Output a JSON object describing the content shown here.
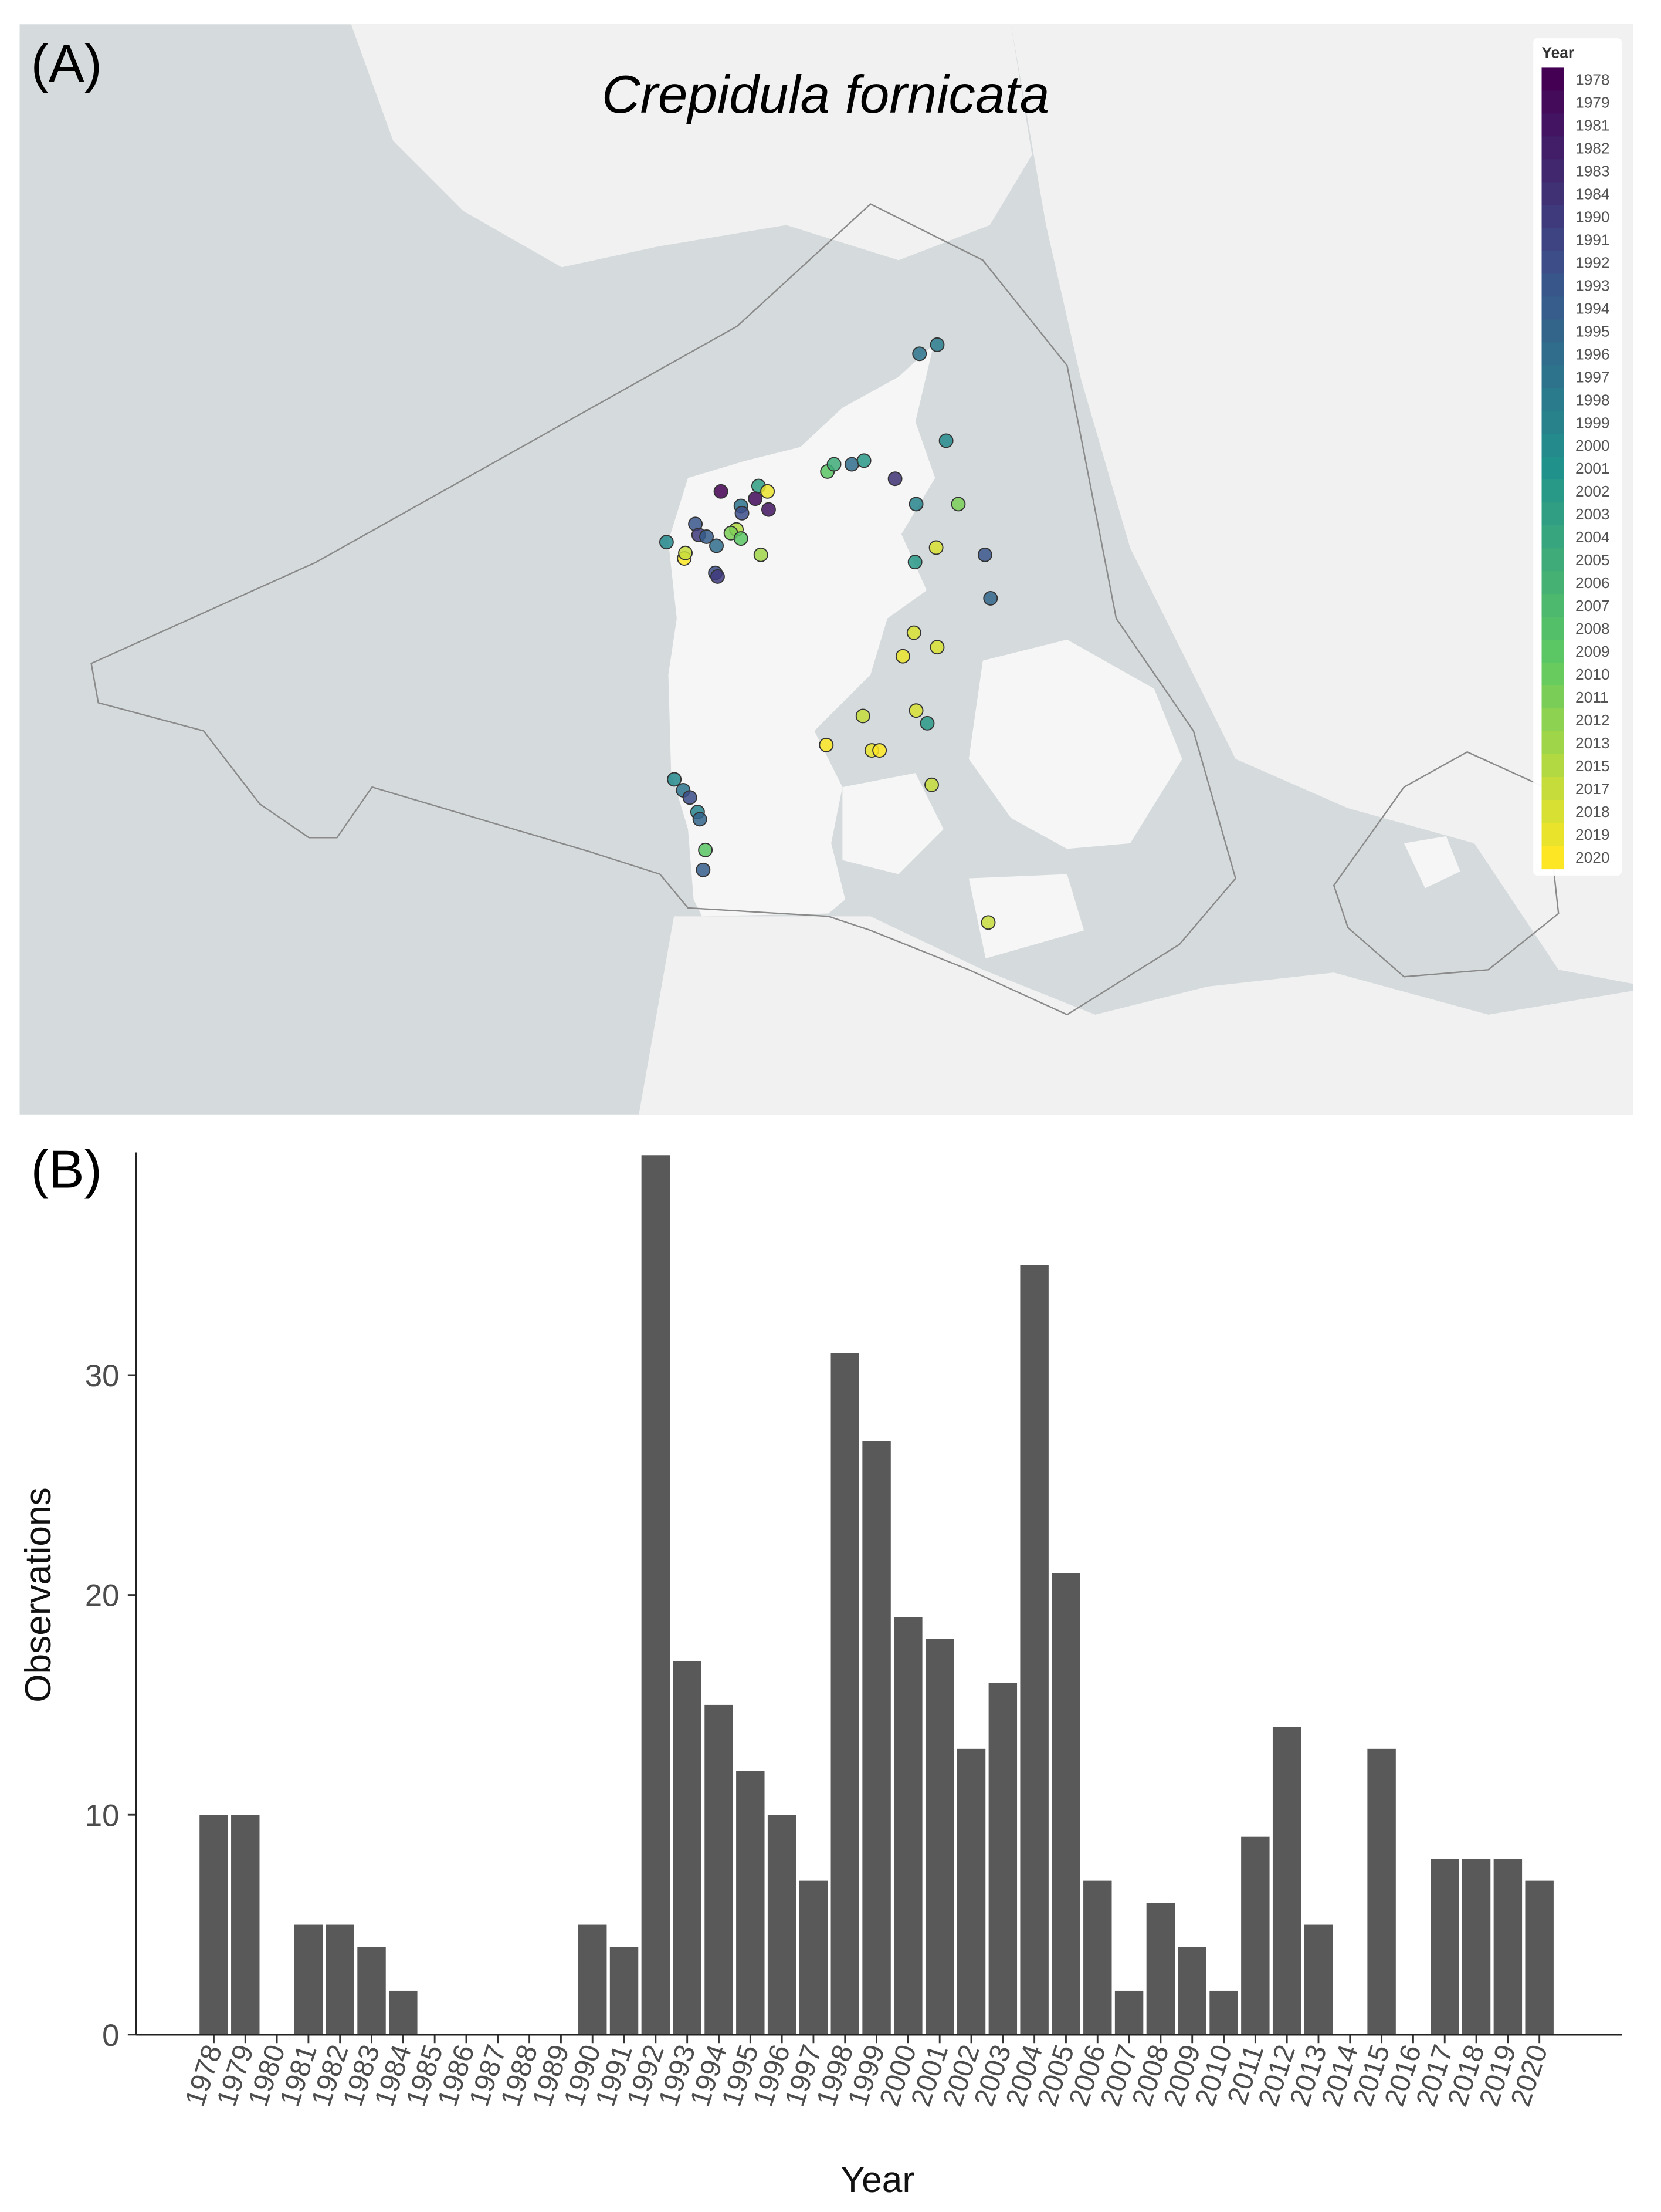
{
  "panel_a": {
    "label": "(A)",
    "title": "Crepidula fornicata",
    "extent": {
      "lon": [
        2.36,
        16.9
      ],
      "lat": [
        59.47,
        53.45
      ]
    },
    "legend": {
      "title": "Year",
      "labels": [
        "1978",
        "1979",
        "1981",
        "1982",
        "1983",
        "1984",
        "1990",
        "1991",
        "1992",
        "1993",
        "1994",
        "1995",
        "1996",
        "1997",
        "1998",
        "1999",
        "2000",
        "2001",
        "2002",
        "2003",
        "2004",
        "2005",
        "2006",
        "2007",
        "2008",
        "2009",
        "2010",
        "2011",
        "2012",
        "2013",
        "2015",
        "2017",
        "2018",
        "2019",
        "2020"
      ],
      "colorscale": [
        "#440154",
        "#3b528b",
        "#21918c",
        "#5ec962",
        "#fde725"
      ]
    },
    "points": [
      {
        "lon": 10.47,
        "lat": 57.65,
        "year": "1997"
      },
      {
        "lon": 10.63,
        "lat": 57.7,
        "year": "1998"
      },
      {
        "lon": 10.71,
        "lat": 57.17,
        "year": "2000"
      },
      {
        "lon": 10.25,
        "lat": 56.96,
        "year": "1984"
      },
      {
        "lon": 10.44,
        "lat": 56.82,
        "year": "1999"
      },
      {
        "lon": 10.82,
        "lat": 56.82,
        "year": "2011"
      },
      {
        "lon": 10.62,
        "lat": 56.58,
        "year": "2018"
      },
      {
        "lon": 10.43,
        "lat": 56.5,
        "year": "2002"
      },
      {
        "lon": 11.06,
        "lat": 56.54,
        "year": "1993"
      },
      {
        "lon": 11.11,
        "lat": 56.3,
        "year": "1995"
      },
      {
        "lon": 9.64,
        "lat": 57.0,
        "year": "2009"
      },
      {
        "lon": 9.7,
        "lat": 57.04,
        "year": "2005"
      },
      {
        "lon": 9.86,
        "lat": 57.04,
        "year": "1996"
      },
      {
        "lon": 9.97,
        "lat": 57.06,
        "year": "2002"
      },
      {
        "lon": 8.68,
        "lat": 56.89,
        "year": "1978"
      },
      {
        "lon": 9.02,
        "lat": 56.92,
        "year": "2003"
      },
      {
        "lon": 9.1,
        "lat": 56.89,
        "year": "2019"
      },
      {
        "lon": 8.99,
        "lat": 56.85,
        "year": "1979"
      },
      {
        "lon": 9.11,
        "lat": 56.79,
        "year": "1981"
      },
      {
        "lon": 8.86,
        "lat": 56.81,
        "year": "1997"
      },
      {
        "lon": 8.87,
        "lat": 56.77,
        "year": "1992"
      },
      {
        "lon": 8.82,
        "lat": 56.68,
        "year": "2015"
      },
      {
        "lon": 8.77,
        "lat": 56.66,
        "year": "2011"
      },
      {
        "lon": 8.86,
        "lat": 56.63,
        "year": "2009"
      },
      {
        "lon": 9.04,
        "lat": 56.54,
        "year": "2013"
      },
      {
        "lon": 8.45,
        "lat": 56.71,
        "year": "1993"
      },
      {
        "lon": 8.48,
        "lat": 56.65,
        "year": "1990"
      },
      {
        "lon": 8.55,
        "lat": 56.64,
        "year": "1994"
      },
      {
        "lon": 8.19,
        "lat": 56.61,
        "year": "2000"
      },
      {
        "lon": 8.35,
        "lat": 56.52,
        "year": "2020"
      },
      {
        "lon": 8.36,
        "lat": 56.55,
        "year": "2017"
      },
      {
        "lon": 8.64,
        "lat": 56.59,
        "year": "1996"
      },
      {
        "lon": 8.63,
        "lat": 56.44,
        "year": "1992"
      },
      {
        "lon": 8.65,
        "lat": 56.42,
        "year": "1990"
      },
      {
        "lon": 10.42,
        "lat": 56.11,
        "year": "2018"
      },
      {
        "lon": 10.63,
        "lat": 56.03,
        "year": "2018"
      },
      {
        "lon": 10.32,
        "lat": 55.98,
        "year": "2019"
      },
      {
        "lon": 10.44,
        "lat": 55.68,
        "year": "2018"
      },
      {
        "lon": 10.54,
        "lat": 55.61,
        "year": "2002"
      },
      {
        "lon": 9.96,
        "lat": 55.65,
        "year": "2017"
      },
      {
        "lon": 9.63,
        "lat": 55.49,
        "year": "2020"
      },
      {
        "lon": 10.04,
        "lat": 55.46,
        "year": "2019"
      },
      {
        "lon": 10.11,
        "lat": 55.46,
        "year": "2020"
      },
      {
        "lon": 10.58,
        "lat": 55.27,
        "year": "2017"
      },
      {
        "lon": 8.26,
        "lat": 55.3,
        "year": "2000"
      },
      {
        "lon": 8.34,
        "lat": 55.24,
        "year": "1997"
      },
      {
        "lon": 8.4,
        "lat": 55.2,
        "year": "1992"
      },
      {
        "lon": 8.47,
        "lat": 55.12,
        "year": "1999"
      },
      {
        "lon": 8.49,
        "lat": 55.08,
        "year": "1995"
      },
      {
        "lon": 8.54,
        "lat": 54.91,
        "year": "2009"
      },
      {
        "lon": 8.52,
        "lat": 54.8,
        "year": "1994"
      },
      {
        "lon": 11.09,
        "lat": 54.51,
        "year": "2017"
      }
    ]
  },
  "chart_data": {
    "type": "bar",
    "label": "(B)",
    "xlabel": "Year",
    "ylabel": "Observations",
    "categories": [
      "1978",
      "1979",
      "1980",
      "1981",
      "1982",
      "1983",
      "1984",
      "1985",
      "1986",
      "1987",
      "1988",
      "1989",
      "1990",
      "1991",
      "1992",
      "1993",
      "1994",
      "1995",
      "1996",
      "1997",
      "1998",
      "1999",
      "2000",
      "2001",
      "2002",
      "2003",
      "2004",
      "2005",
      "2006",
      "2007",
      "2008",
      "2009",
      "2010",
      "2011",
      "2012",
      "2013",
      "2014",
      "2015",
      "2016",
      "2017",
      "2018",
      "2019",
      "2020"
    ],
    "values": [
      10,
      10,
      0,
      5,
      5,
      4,
      2,
      0,
      0,
      0,
      0,
      0,
      5,
      4,
      40,
      17,
      15,
      12,
      10,
      7,
      31,
      27,
      19,
      18,
      13,
      16,
      35,
      21,
      7,
      2,
      6,
      4,
      2,
      9,
      14,
      5,
      0,
      13,
      0,
      8,
      8,
      8,
      7
    ],
    "color": "#595959",
    "ylim": [
      0,
      40
    ],
    "yticks": [
      0,
      10,
      20,
      30
    ]
  }
}
